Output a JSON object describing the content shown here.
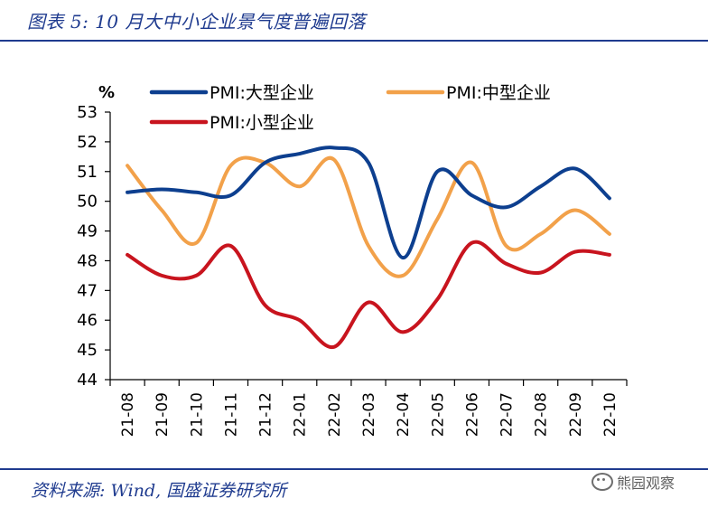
{
  "figure": {
    "title": "图表 5:  10 月大中小企业景气度普遍回落",
    "source": "资料来源: Wind, 国盛证券研究所",
    "watermark": "熊园观察"
  },
  "chart_data": {
    "type": "line",
    "ylabel": "%",
    "ylim": [
      44,
      53
    ],
    "yticks": [
      "53",
      "52",
      "51",
      "50",
      "49",
      "48",
      "47",
      "46",
      "45",
      "44"
    ],
    "categories": [
      "21-08",
      "21-09",
      "21-10",
      "21-11",
      "21-12",
      "22-01",
      "22-02",
      "22-03",
      "22-04",
      "22-05",
      "22-06",
      "22-07",
      "22-08",
      "22-09",
      "22-10"
    ],
    "series": [
      {
        "name": "PMI:大型企业",
        "color": "#0d3f8f",
        "values": [
          50.3,
          50.4,
          50.3,
          50.2,
          51.3,
          51.6,
          51.8,
          51.3,
          48.1,
          51.0,
          50.2,
          49.8,
          50.5,
          51.1,
          50.1
        ]
      },
      {
        "name": "PMI:中型企业",
        "color": "#f2a14a",
        "values": [
          51.2,
          49.7,
          48.6,
          51.2,
          51.3,
          50.5,
          51.4,
          48.5,
          47.5,
          49.4,
          51.3,
          48.5,
          48.9,
          49.7,
          48.9
        ]
      },
      {
        "name": "PMI:小型企业",
        "color": "#c8141e",
        "values": [
          48.2,
          47.5,
          47.5,
          48.5,
          46.5,
          46.0,
          45.1,
          46.6,
          45.6,
          46.7,
          48.6,
          47.9,
          47.6,
          48.3,
          48.2
        ]
      }
    ]
  }
}
